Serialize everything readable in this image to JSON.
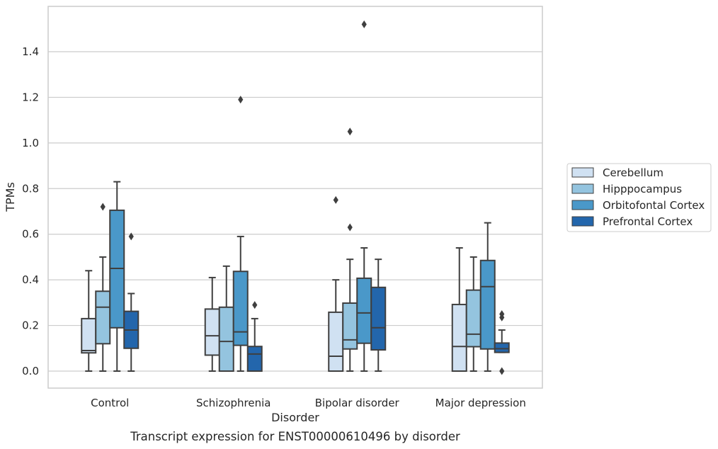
{
  "chart_data": {
    "type": "box",
    "xlabel": "Disorder",
    "ylabel": "TPMs",
    "caption": "Transcript expression for ENST00000610496 by disorder",
    "categories": [
      "Control",
      "Schizophrenia",
      "Bipolar disorder",
      "Major depression"
    ],
    "ylim": [
      -0.07,
      1.59
    ],
    "yticks": [
      0.0,
      0.2,
      0.4,
      0.6,
      0.8,
      1.0,
      1.2,
      1.4
    ],
    "ytick_labels": [
      "0.0",
      "0.2",
      "0.4",
      "0.6",
      "0.8",
      "1.0",
      "1.2",
      "1.4"
    ],
    "grid": "horizontal",
    "legend_position": "right",
    "series": [
      {
        "name": "Cerebellum",
        "color": "#d0e1f2",
        "boxes": [
          {
            "whisker_low": 0.0,
            "q1": 0.08,
            "median": 0.09,
            "q3": 0.23,
            "whisker_high": 0.44,
            "outliers": []
          },
          {
            "whisker_low": 0.0,
            "q1": 0.07,
            "median": 0.155,
            "q3": 0.272,
            "whisker_high": 0.41,
            "outliers": []
          },
          {
            "whisker_low": 0.0,
            "q1": 0.0,
            "median": 0.065,
            "q3": 0.258,
            "whisker_high": 0.4,
            "outliers": [
              0.75
            ]
          },
          {
            "whisker_low": 0.0,
            "q1": 0.0,
            "median": 0.108,
            "q3": 0.292,
            "whisker_high": 0.54,
            "outliers": []
          }
        ]
      },
      {
        "name": "Hipppocampus",
        "color": "#94c4df",
        "boxes": [
          {
            "whisker_low": 0.0,
            "q1": 0.12,
            "median": 0.28,
            "q3": 0.35,
            "whisker_high": 0.5,
            "outliers": [
              0.72
            ]
          },
          {
            "whisker_low": 0.0,
            "q1": 0.0,
            "median": 0.13,
            "q3": 0.28,
            "whisker_high": 0.46,
            "outliers": []
          },
          {
            "whisker_low": 0.0,
            "q1": 0.097,
            "median": 0.137,
            "q3": 0.298,
            "whisker_high": 0.49,
            "outliers": [
              0.63,
              1.05
            ]
          },
          {
            "whisker_low": 0.0,
            "q1": 0.107,
            "median": 0.162,
            "q3": 0.355,
            "whisker_high": 0.5,
            "outliers": []
          }
        ]
      },
      {
        "name": "Orbitofontal Cortex",
        "color": "#4a98c9",
        "boxes": [
          {
            "whisker_low": 0.0,
            "q1": 0.19,
            "median": 0.45,
            "q3": 0.705,
            "whisker_high": 0.83,
            "outliers": []
          },
          {
            "whisker_low": 0.0,
            "q1": 0.113,
            "median": 0.172,
            "q3": 0.437,
            "whisker_high": 0.59,
            "outliers": [
              1.19
            ]
          },
          {
            "whisker_low": 0.0,
            "q1": 0.122,
            "median": 0.255,
            "q3": 0.407,
            "whisker_high": 0.54,
            "outliers": [
              1.52
            ]
          },
          {
            "whisker_low": 0.0,
            "q1": 0.097,
            "median": 0.37,
            "q3": 0.485,
            "whisker_high": 0.65,
            "outliers": []
          }
        ]
      },
      {
        "name": "Prefrontal Cortex",
        "color": "#2366ac",
        "boxes": [
          {
            "whisker_low": 0.0,
            "q1": 0.1,
            "median": 0.18,
            "q3": 0.262,
            "whisker_high": 0.34,
            "outliers": [
              0.59
            ]
          },
          {
            "whisker_low": 0.0,
            "q1": 0.0,
            "median": 0.075,
            "q3": 0.108,
            "whisker_high": 0.23,
            "outliers": [
              0.29
            ]
          },
          {
            "whisker_low": 0.0,
            "q1": 0.093,
            "median": 0.19,
            "q3": 0.367,
            "whisker_high": 0.49,
            "outliers": []
          },
          {
            "whisker_low": 0.082,
            "q1": 0.082,
            "median": 0.098,
            "q3": 0.123,
            "whisker_high": 0.18,
            "outliers": [
              0.0,
              0.235,
              0.25
            ]
          }
        ]
      }
    ]
  }
}
